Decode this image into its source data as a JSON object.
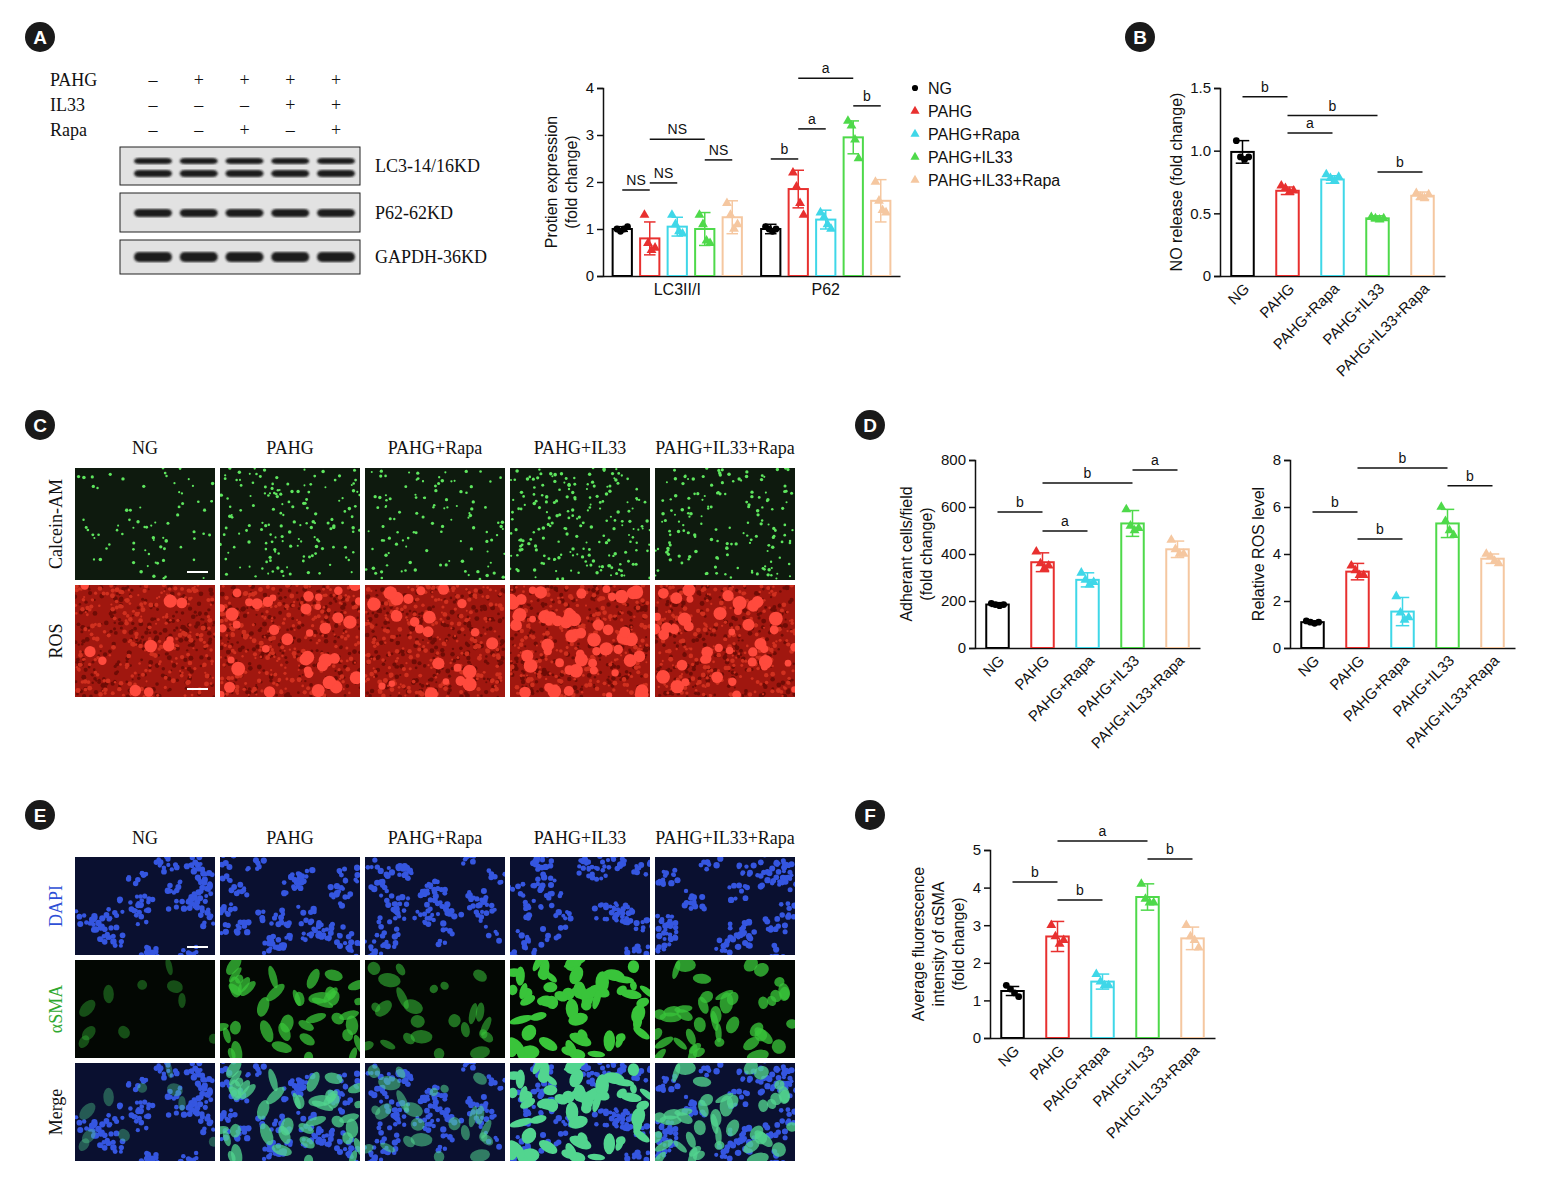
{
  "blot": {
    "panel_label": "A",
    "rows": [
      {
        "label": "PAHG",
        "signs": [
          "–",
          "+",
          "+",
          "+",
          "+"
        ]
      },
      {
        "label": "IL33",
        "signs": [
          "–",
          "–",
          "–",
          "+",
          "+"
        ]
      },
      {
        "label": "Rapa",
        "signs": [
          "–",
          "–",
          "+",
          "–",
          "+"
        ]
      }
    ],
    "bands": [
      "LC3-14/16KD",
      "P62-62KD",
      "GAPDH-36KD"
    ]
  },
  "images": [
    {
      "panel_label": "C",
      "columns": [
        "NG",
        "PAHG",
        "PAHG+Rapa",
        "PAHG+IL33",
        "PAHG+IL33+Rapa"
      ],
      "rows": [
        "Calcein-AM",
        "ROS"
      ]
    },
    {
      "panel_label": "E",
      "columns": [
        "NG",
        "PAHG",
        "PAHG+Rapa",
        "PAHG+IL33",
        "PAHG+IL33+Rapa"
      ],
      "rows": [
        "DAPI",
        "αSMA",
        "Merge"
      ]
    }
  ],
  "chart_data": [
    {
      "type": "bar",
      "y_label": [
        "Protien expression",
        "(fold change)"
      ],
      "categories": [
        "LC3II/I",
        "P62"
      ],
      "series": [
        {
          "name": "NG",
          "color": "#000000",
          "marker": "circle",
          "values": [
            1.0,
            1.0
          ],
          "errors": [
            0.05,
            0.1
          ],
          "points": [
            [
              1.0,
              0.95,
              1.0,
              1.05
            ],
            [
              1.05,
              1.0,
              0.95,
              1.0
            ]
          ]
        },
        {
          "name": "PAHG",
          "color": "#e8302f",
          "marker": "triangle",
          "values": [
            0.8,
            1.85
          ],
          "errors": [
            0.35,
            0.4
          ],
          "points": [
            [
              1.3,
              0.7,
              0.55,
              0.6
            ],
            [
              2.2,
              1.9,
              1.55,
              1.3
            ]
          ]
        },
        {
          "name": "PAHG+Rapa",
          "color": "#3fd7e8",
          "marker": "triangle",
          "values": [
            1.05,
            1.2
          ],
          "errors": [
            0.2,
            0.2
          ],
          "points": [
            [
              1.3,
              1.1,
              0.95,
              0.9
            ],
            [
              1.35,
              1.25,
              1.1,
              1.0
            ]
          ]
        },
        {
          "name": "PAHG+IL33",
          "color": "#4ed94a",
          "marker": "triangle",
          "values": [
            1.0,
            2.95
          ],
          "errors": [
            0.35,
            0.35
          ],
          "points": [
            [
              1.3,
              1.1,
              0.75,
              0.7
            ],
            [
              3.3,
              3.2,
              2.9,
              2.5
            ]
          ]
        },
        {
          "name": "PAHG+IL33+Rapa",
          "color": "#f5c7a0",
          "marker": "triangle",
          "values": [
            1.25,
            1.6
          ],
          "errors": [
            0.35,
            0.45
          ],
          "points": [
            [
              1.55,
              1.3,
              1.0,
              1.1
            ],
            [
              2.0,
              1.6,
              1.4,
              1.35
            ]
          ]
        }
      ],
      "ylim": [
        0,
        4
      ],
      "yticks": [
        0,
        1,
        2,
        3,
        4
      ],
      "grid": false,
      "legend": "right",
      "annotations": [
        {
          "text": "NS",
          "category": "LC3II/I",
          "from": "NG",
          "to": "PAHG",
          "y": 1.83
        },
        {
          "text": "NS",
          "category": "LC3II/I",
          "from": "PAHG",
          "to": "PAHG+Rapa",
          "y": 1.98
        },
        {
          "text": "NS",
          "category": "LC3II/I",
          "from": "PAHG",
          "to": "PAHG+IL33",
          "y": 2.91
        },
        {
          "text": "NS",
          "category": "LC3II/I",
          "from": "PAHG+IL33",
          "to": "PAHG+IL33+Rapa",
          "y": 2.47
        },
        {
          "text": "b",
          "category": "P62",
          "from": "NG",
          "to": "PAHG",
          "y": 2.49
        },
        {
          "text": "a",
          "category": "P62",
          "from": "PAHG",
          "to": "PAHG+Rapa",
          "y": 3.13
        },
        {
          "text": "a",
          "category": "P62",
          "from": "PAHG",
          "to": "PAHG+IL33",
          "y": 4.21
        },
        {
          "text": "b",
          "category": "P62",
          "from": "PAHG+IL33",
          "to": "PAHG+IL33+Rapa",
          "y": 3.62
        }
      ]
    },
    {
      "type": "bar",
      "panel_label": "B",
      "y_label": [
        "NO release (fold change)"
      ],
      "categories": [
        "NG",
        "PAHG",
        "PAHG+Rapa",
        "PAHG+IL33",
        "PAHG+IL33+Rapa"
      ],
      "values": [
        0.99,
        0.68,
        0.77,
        0.46,
        0.64
      ],
      "errors": [
        0.09,
        0.03,
        0.03,
        0.02,
        0.03
      ],
      "points": [
        [
          1.08,
          0.95,
          0.93,
          0.95
        ],
        [
          0.72,
          0.7,
          0.67,
          0.68
        ],
        [
          0.81,
          0.78,
          0.76,
          0.79
        ],
        [
          0.47,
          0.46,
          0.45,
          0.46
        ],
        [
          0.66,
          0.63,
          0.62,
          0.65
        ]
      ],
      "colors": [
        "#000000",
        "#e8302f",
        "#3fd7e8",
        "#4ed94a",
        "#f5c7a0"
      ],
      "marker": [
        "circle",
        "triangle",
        "triangle",
        "triangle",
        "triangle"
      ],
      "ylim": [
        0,
        1.5
      ],
      "yticks": [
        0,
        0.5,
        {
          "value": 1,
          "label": "1.0"
        },
        1.5
      ],
      "grid": false,
      "annotations": [
        {
          "text": "b",
          "from": "NG",
          "to": "PAHG",
          "y": 1.43
        },
        {
          "text": "b",
          "from": "PAHG",
          "to": "PAHG+IL33",
          "y": 1.28
        },
        {
          "text": "a",
          "from": "PAHG",
          "to": "PAHG+Rapa",
          "y": 1.14
        },
        {
          "text": "b",
          "from": "PAHG+IL33",
          "to": "PAHG+IL33+Rapa",
          "y": 0.83
        }
      ]
    },
    {
      "type": "bar",
      "panel_label": "D",
      "y_label": [
        "Adherant cells/field",
        "(fold change)"
      ],
      "categories": [
        "NG",
        "PAHG",
        "PAHG+Rapa",
        "PAHG+IL33",
        "PAHG+IL33+Rapa"
      ],
      "values": [
        185,
        365,
        290,
        530,
        420
      ],
      "errors": [
        8,
        40,
        30,
        55,
        35
      ],
      "points": [
        [
          190,
          185,
          180,
          185
        ],
        [
          410,
          360,
          340,
          350
        ],
        [
          320,
          290,
          270,
          280
        ],
        [
          590,
          520,
          500,
          510
        ],
        [
          460,
          420,
          400,
          400
        ]
      ],
      "colors": [
        "#000000",
        "#e8302f",
        "#3fd7e8",
        "#4ed94a",
        "#f5c7a0"
      ],
      "marker": [
        "circle",
        "triangle",
        "triangle",
        "triangle",
        "triangle"
      ],
      "ylim": [
        0,
        800
      ],
      "yticks": [
        0,
        200,
        400,
        600,
        800
      ],
      "grid": false,
      "annotations": [
        {
          "text": "b",
          "from": "NG",
          "to": "PAHG",
          "y": 579
        },
        {
          "text": "a",
          "from": "PAHG",
          "to": "PAHG+Rapa",
          "y": 498
        },
        {
          "text": "b",
          "from": "PAHG",
          "to": "PAHG+IL33",
          "y": 702
        },
        {
          "text": "a",
          "from": "PAHG+IL33",
          "to": "PAHG+IL33+Rapa",
          "y": 757
        }
      ]
    },
    {
      "type": "bar",
      "y_label": [
        "Relative ROS level"
      ],
      "categories": [
        "NG",
        "PAHG",
        "PAHG+Rapa",
        "PAHG+IL33",
        "PAHG+IL33+Rapa"
      ],
      "values": [
        1.1,
        3.25,
        1.55,
        5.3,
        3.8
      ],
      "errors": [
        0.05,
        0.35,
        0.6,
        0.6,
        0.2
      ],
      "points": [
        [
          1.15,
          1.1,
          1.05,
          1.1
        ],
        [
          3.5,
          3.3,
          3.1,
          3.1
        ],
        [
          2.2,
          1.5,
          1.2,
          1.3
        ],
        [
          6.0,
          5.4,
          5.0,
          4.8
        ],
        [
          4.0,
          3.9,
          3.7,
          3.6
        ]
      ],
      "colors": [
        "#000000",
        "#e8302f",
        "#3fd7e8",
        "#4ed94a",
        "#f5c7a0"
      ],
      "marker": [
        "circle",
        "triangle",
        "triangle",
        "triangle",
        "triangle"
      ],
      "ylim": [
        0,
        8
      ],
      "yticks": [
        0,
        2,
        4,
        6,
        8
      ],
      "grid": false,
      "annotations": [
        {
          "text": "b",
          "from": "NG",
          "to": "PAHG",
          "y": 5.79
        },
        {
          "text": "b",
          "from": "PAHG",
          "to": "PAHG+Rapa",
          "y": 4.64
        },
        {
          "text": "b",
          "from": "PAHG",
          "to": "PAHG+IL33",
          "y": 7.66
        },
        {
          "text": "b",
          "from": "PAHG+IL33",
          "to": "PAHG+IL33+Rapa",
          "y": 6.9
        }
      ]
    },
    {
      "type": "bar",
      "panel_label": "F",
      "y_label": [
        "Average fluorescence",
        "intensity of αSMA",
        "(fold change)"
      ],
      "categories": [
        "NG",
        "PAHG",
        "PAHG+Rapa",
        "PAHG+IL33",
        "PAHG+IL33+Rapa"
      ],
      "values": [
        1.25,
        2.7,
        1.5,
        3.75,
        2.65
      ],
      "errors": [
        0.12,
        0.4,
        0.2,
        0.35,
        0.3
      ],
      "points": [
        [
          1.4,
          1.3,
          1.2,
          1.1
        ],
        [
          3.0,
          2.7,
          2.5,
          2.6
        ],
        [
          1.7,
          1.5,
          1.4,
          1.4
        ],
        [
          4.1,
          3.7,
          3.6,
          3.6
        ],
        [
          3.0,
          2.7,
          2.6,
          2.4
        ]
      ],
      "colors": [
        "#000000",
        "#e8302f",
        "#3fd7e8",
        "#4ed94a",
        "#f5c7a0"
      ],
      "marker": [
        "circle",
        "triangle",
        "triangle",
        "triangle",
        "triangle"
      ],
      "ylim": [
        0,
        5
      ],
      "yticks": [
        0,
        1,
        2,
        3,
        4,
        5
      ],
      "grid": false,
      "annotations": [
        {
          "text": "b",
          "from": "NG",
          "to": "PAHG",
          "y": 4.15
        },
        {
          "text": "b",
          "from": "PAHG",
          "to": "PAHG+Rapa",
          "y": 3.67
        },
        {
          "text": "a",
          "from": "PAHG",
          "to": "PAHG+IL33",
          "y": 5.24
        },
        {
          "text": "b",
          "from": "PAHG+IL33",
          "to": "PAHG+IL33+Rapa",
          "y": 4.76
        }
      ]
    }
  ]
}
